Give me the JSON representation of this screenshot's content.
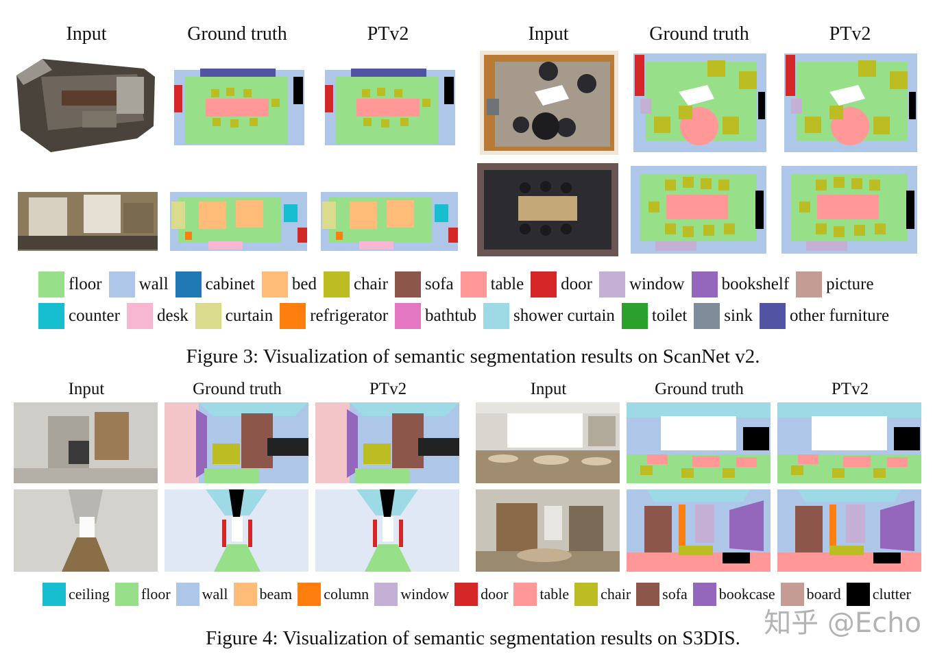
{
  "fig3": {
    "col_headers": [
      "Input",
      "Ground truth",
      "PTv2",
      "Input",
      "Ground truth",
      "PTv2"
    ],
    "caption": "Figure 3: Visualization of semantic segmentation results on ScanNet v2.",
    "legend_row1": [
      {
        "label": "floor",
        "color": "#98df8a"
      },
      {
        "label": "wall",
        "color": "#aec7e8"
      },
      {
        "label": "cabinet",
        "color": "#1f77b4"
      },
      {
        "label": "bed",
        "color": "#ffbb78"
      },
      {
        "label": "chair",
        "color": "#bcbd22"
      },
      {
        "label": "sofa",
        "color": "#8c564b"
      },
      {
        "label": "table",
        "color": "#ff9896"
      },
      {
        "label": "door",
        "color": "#d62728"
      },
      {
        "label": "window",
        "color": "#c5b0d5"
      },
      {
        "label": "bookshelf",
        "color": "#9467bd"
      },
      {
        "label": "picture",
        "color": "#c49c94"
      }
    ],
    "legend_row2": [
      {
        "label": "counter",
        "color": "#17becf"
      },
      {
        "label": "desk",
        "color": "#f7b6d2"
      },
      {
        "label": "curtain",
        "color": "#dbdb8d"
      },
      {
        "label": "refrigerator",
        "color": "#ff7f0e"
      },
      {
        "label": "bathtub",
        "color": "#e377c2"
      },
      {
        "label": "shower curtain",
        "color": "#9edae5"
      },
      {
        "label": "toilet",
        "color": "#2ca02c"
      },
      {
        "label": "sink",
        "color": "#7f8c9a"
      },
      {
        "label": "other furniture",
        "color": "#5254a3"
      }
    ]
  },
  "fig4": {
    "col_headers": [
      "Input",
      "Ground truth",
      "PTv2",
      "Input",
      "Ground truth",
      "PTv2"
    ],
    "caption": "Figure 4: Visualization of semantic segmentation results on S3DIS.",
    "legend": [
      {
        "label": "ceiling",
        "color": "#17becf"
      },
      {
        "label": "floor",
        "color": "#98df8a"
      },
      {
        "label": "wall",
        "color": "#aec7e8"
      },
      {
        "label": "beam",
        "color": "#ffbb78"
      },
      {
        "label": "column",
        "color": "#ff7f0e"
      },
      {
        "label": "window",
        "color": "#c5b0d5"
      },
      {
        "label": "door",
        "color": "#d62728"
      },
      {
        "label": "table",
        "color": "#ff9896"
      },
      {
        "label": "chair",
        "color": "#bcbd22"
      },
      {
        "label": "sofa",
        "color": "#8c564b"
      },
      {
        "label": "bookcase",
        "color": "#9467bd"
      },
      {
        "label": "board",
        "color": "#c49c94"
      },
      {
        "label": "clutter",
        "color": "#000000"
      }
    ]
  },
  "watermark": "知乎 @Echo"
}
